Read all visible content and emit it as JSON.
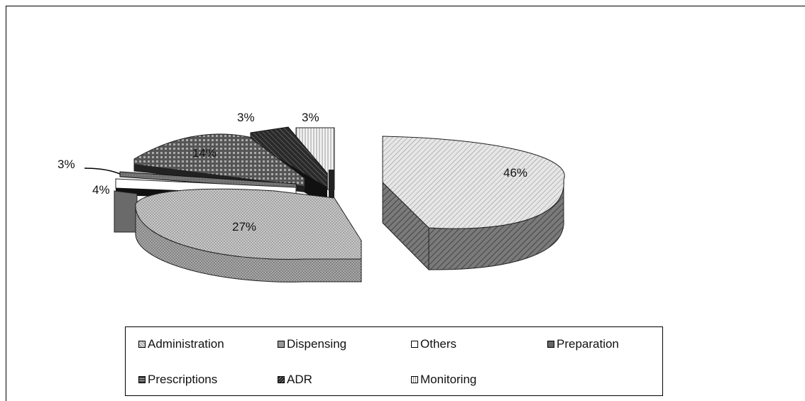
{
  "chart_data": {
    "type": "pie",
    "style": "3d-exploded",
    "slices": [
      {
        "label": "Administration",
        "value": 46,
        "data_label": "46%",
        "color": "#e0e0e0",
        "pattern": "diag-light"
      },
      {
        "label": "Dispensing",
        "value": 27,
        "data_label": "27%",
        "color": "#b8b8b8",
        "pattern": "dots"
      },
      {
        "label": "Others",
        "value": 4,
        "data_label": "4%",
        "color": "#ffffff",
        "pattern": "none"
      },
      {
        "label": "Preparation",
        "value": 3,
        "data_label": "3%",
        "color": "#707070",
        "pattern": "solid-dark"
      },
      {
        "label": "Prescriptions",
        "value": 14,
        "data_label": "14%",
        "color": "#555555",
        "pattern": "grid"
      },
      {
        "label": "ADR",
        "value": 3,
        "data_label": "3%",
        "color": "#303030",
        "pattern": "diag-dark"
      },
      {
        "label": "Monitoring",
        "value": 3,
        "data_label": "3%",
        "color": "#f2f2f2",
        "pattern": "vertical-lines"
      }
    ],
    "legend_position": "bottom",
    "title": ""
  },
  "legend": {
    "items": [
      "Administration",
      "Dispensing",
      "Others",
      "Preparation",
      "Prescriptions",
      "ADR",
      "Monitoring"
    ]
  }
}
